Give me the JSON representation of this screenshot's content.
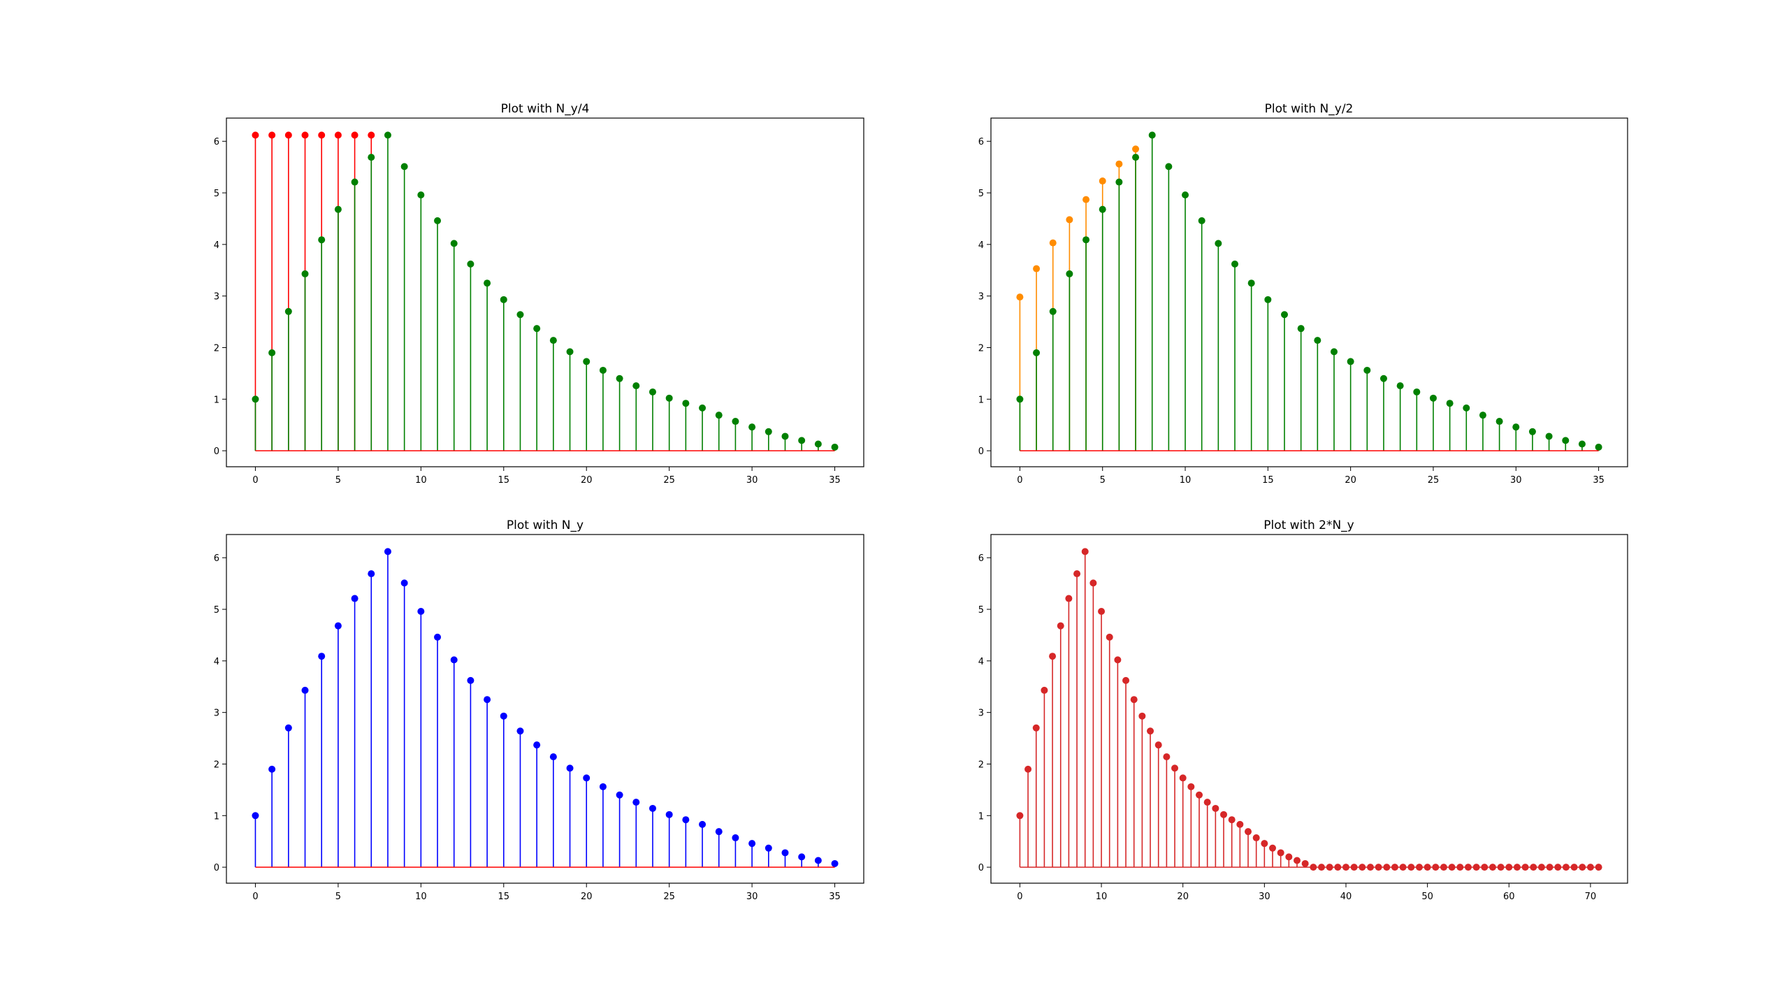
{
  "chart_data": [
    {
      "type": "stem",
      "title": "Plot with N_y/4",
      "xlabel": "",
      "ylabel": "",
      "xlim": [
        -1.75,
        36.75
      ],
      "ylim": [
        -0.31,
        6.45
      ],
      "xticks": [
        0,
        5,
        10,
        15,
        20,
        25,
        30,
        35
      ],
      "yticks": [
        0,
        1,
        2,
        3,
        4,
        5,
        6
      ],
      "grid": false,
      "baseline_color": "#ff0000",
      "series": [
        {
          "color": "#ff0000",
          "x": [
            0,
            1,
            2,
            3,
            4,
            5,
            6,
            7
          ],
          "values": [
            6.12,
            6.12,
            6.12,
            6.12,
            6.12,
            6.12,
            6.12,
            6.12
          ]
        },
        {
          "color": "#008000",
          "x": [
            0,
            1,
            2,
            3,
            4,
            5,
            6,
            7,
            8,
            9,
            10,
            11,
            12,
            13,
            14,
            15,
            16,
            17,
            18,
            19,
            20,
            21,
            22,
            23,
            24,
            25,
            26,
            27,
            28,
            29,
            30,
            31,
            32,
            33,
            34,
            35
          ],
          "values": [
            1.0,
            1.9,
            2.7,
            3.43,
            4.09,
            4.68,
            5.21,
            5.69,
            6.12,
            5.51,
            4.96,
            4.46,
            4.02,
            3.62,
            3.25,
            2.93,
            2.64,
            2.37,
            2.14,
            1.92,
            1.73,
            1.56,
            1.4,
            1.26,
            1.14,
            1.02,
            0.92,
            0.83,
            0.69,
            0.57,
            0.46,
            0.37,
            0.28,
            0.2,
            0.13,
            0.07
          ]
        }
      ]
    },
    {
      "type": "stem",
      "title": "Plot with N_y/2",
      "xlabel": "",
      "ylabel": "",
      "xlim": [
        -1.75,
        36.75
      ],
      "ylim": [
        -0.31,
        6.45
      ],
      "xticks": [
        0,
        5,
        10,
        15,
        20,
        25,
        30,
        35
      ],
      "yticks": [
        0,
        1,
        2,
        3,
        4,
        5,
        6
      ],
      "grid": false,
      "baseline_color": "#ff0000",
      "series": [
        {
          "color": "#ff8c00",
          "x": [
            0,
            1,
            2,
            3,
            4,
            5,
            6,
            7
          ],
          "values": [
            2.98,
            3.53,
            4.03,
            4.48,
            4.87,
            5.23,
            5.56,
            5.85
          ]
        },
        {
          "color": "#008000",
          "x": [
            0,
            1,
            2,
            3,
            4,
            5,
            6,
            7,
            8,
            9,
            10,
            11,
            12,
            13,
            14,
            15,
            16,
            17,
            18,
            19,
            20,
            21,
            22,
            23,
            24,
            25,
            26,
            27,
            28,
            29,
            30,
            31,
            32,
            33,
            34,
            35
          ],
          "values": [
            1.0,
            1.9,
            2.7,
            3.43,
            4.09,
            4.68,
            5.21,
            5.69,
            6.12,
            5.51,
            4.96,
            4.46,
            4.02,
            3.62,
            3.25,
            2.93,
            2.64,
            2.37,
            2.14,
            1.92,
            1.73,
            1.56,
            1.4,
            1.26,
            1.14,
            1.02,
            0.92,
            0.83,
            0.69,
            0.57,
            0.46,
            0.37,
            0.28,
            0.2,
            0.13,
            0.07
          ]
        }
      ]
    },
    {
      "type": "stem",
      "title": "Plot with N_y",
      "xlabel": "",
      "ylabel": "",
      "xlim": [
        -1.75,
        36.75
      ],
      "ylim": [
        -0.31,
        6.45
      ],
      "xticks": [
        0,
        5,
        10,
        15,
        20,
        25,
        30,
        35
      ],
      "yticks": [
        0,
        1,
        2,
        3,
        4,
        5,
        6
      ],
      "grid": false,
      "baseline_color": "#ff0000",
      "series": [
        {
          "color": "#0000ff",
          "x": [
            0,
            1,
            2,
            3,
            4,
            5,
            6,
            7,
            8,
            9,
            10,
            11,
            12,
            13,
            14,
            15,
            16,
            17,
            18,
            19,
            20,
            21,
            22,
            23,
            24,
            25,
            26,
            27,
            28,
            29,
            30,
            31,
            32,
            33,
            34,
            35
          ],
          "values": [
            1.0,
            1.9,
            2.7,
            3.43,
            4.09,
            4.68,
            5.21,
            5.69,
            6.12,
            5.51,
            4.96,
            4.46,
            4.02,
            3.62,
            3.25,
            2.93,
            2.64,
            2.37,
            2.14,
            1.92,
            1.73,
            1.56,
            1.4,
            1.26,
            1.14,
            1.02,
            0.92,
            0.83,
            0.69,
            0.57,
            0.46,
            0.37,
            0.28,
            0.2,
            0.13,
            0.07
          ]
        }
      ]
    },
    {
      "type": "stem",
      "title": "Plot with 2*N_y",
      "xlabel": "",
      "ylabel": "",
      "xlim": [
        -3.55,
        74.55
      ],
      "ylim": [
        -0.31,
        6.45
      ],
      "xticks": [
        0,
        10,
        20,
        30,
        40,
        50,
        60,
        70
      ],
      "yticks": [
        0,
        1,
        2,
        3,
        4,
        5,
        6
      ],
      "grid": false,
      "baseline_color": "#d62728",
      "series": [
        {
          "color": "#d62728",
          "x": [
            0,
            1,
            2,
            3,
            4,
            5,
            6,
            7,
            8,
            9,
            10,
            11,
            12,
            13,
            14,
            15,
            16,
            17,
            18,
            19,
            20,
            21,
            22,
            23,
            24,
            25,
            26,
            27,
            28,
            29,
            30,
            31,
            32,
            33,
            34,
            35,
            36,
            37,
            38,
            39,
            40,
            41,
            42,
            43,
            44,
            45,
            46,
            47,
            48,
            49,
            50,
            51,
            52,
            53,
            54,
            55,
            56,
            57,
            58,
            59,
            60,
            61,
            62,
            63,
            64,
            65,
            66,
            67,
            68,
            69,
            70,
            71
          ],
          "values": [
            1.0,
            1.9,
            2.7,
            3.43,
            4.09,
            4.68,
            5.21,
            5.69,
            6.12,
            5.51,
            4.96,
            4.46,
            4.02,
            3.62,
            3.25,
            2.93,
            2.64,
            2.37,
            2.14,
            1.92,
            1.73,
            1.56,
            1.4,
            1.26,
            1.14,
            1.02,
            0.92,
            0.83,
            0.69,
            0.57,
            0.46,
            0.37,
            0.28,
            0.2,
            0.13,
            0.07,
            0,
            0,
            0,
            0,
            0,
            0,
            0,
            0,
            0,
            0,
            0,
            0,
            0,
            0,
            0,
            0,
            0,
            0,
            0,
            0,
            0,
            0,
            0,
            0,
            0,
            0,
            0,
            0,
            0,
            0,
            0,
            0,
            0,
            0,
            0,
            0
          ]
        }
      ]
    }
  ]
}
